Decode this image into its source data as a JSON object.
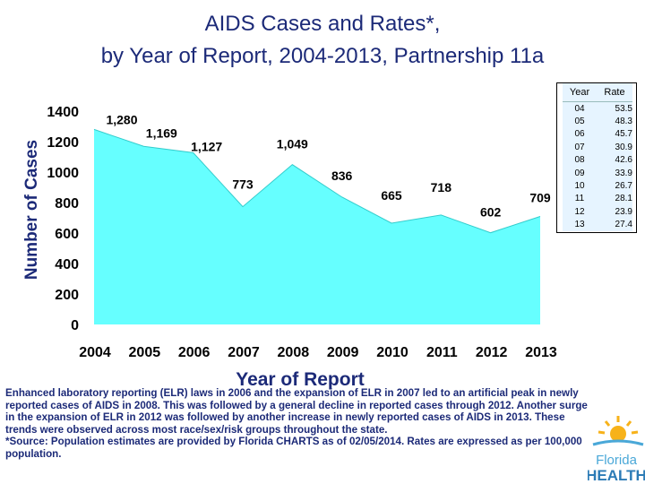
{
  "title_line1": "AIDS Cases and Rates*,",
  "title_line2": "by Year of Report, 2004-2013, Partnership 11a",
  "chart_data": {
    "type": "area",
    "x": [
      "2004",
      "2005",
      "2006",
      "2007",
      "2008",
      "2009",
      "2010",
      "2011",
      "2012",
      "2013"
    ],
    "values": [
      1280,
      1169,
      1127,
      773,
      1049,
      836,
      665,
      718,
      602,
      709
    ],
    "data_labels": [
      "1,280",
      "1,169",
      "1,127",
      "773",
      "1,049",
      "836",
      "665",
      "718",
      "602",
      "709"
    ],
    "ylabel": "Number of Cases",
    "xlabel": "Year of Report",
    "ylim": [
      0,
      1400
    ],
    "yticks": [
      0,
      200,
      400,
      600,
      800,
      1000,
      1200,
      1400
    ],
    "fill_color": "#66ffff"
  },
  "rate_table": {
    "header_year": "Year",
    "header_rate": "Rate",
    "rows": [
      {
        "year": "04",
        "rate": "53.5"
      },
      {
        "year": "05",
        "rate": "48.3"
      },
      {
        "year": "06",
        "rate": "45.7"
      },
      {
        "year": "07",
        "rate": "30.9"
      },
      {
        "year": "08",
        "rate": "42.6"
      },
      {
        "year": "09",
        "rate": "33.9"
      },
      {
        "year": "10",
        "rate": "26.7"
      },
      {
        "year": "11",
        "rate": "28.1"
      },
      {
        "year": "12",
        "rate": "23.9"
      },
      {
        "year": "13",
        "rate": "27.4"
      }
    ]
  },
  "footnote": "Enhanced laboratory reporting (ELR) laws in 2006 and the expansion of ELR in 2007 led to an artificial peak in newly reported cases of AIDS in 2008.  This was followed by a general decline in reported cases through 2012.  Another surge in the expansion of ELR in 2012 was followed by another increase in newly reported cases of  AIDS in 2013.  These trends were observed across most race/sex/risk groups throughout the state.",
  "source_note": "*Source: Population estimates are provided by Florida CHARTS as of 02/05/2014. Rates are expressed as per 100,000 population.",
  "logo": {
    "line1": "Florida",
    "line2": "HEALTH"
  }
}
